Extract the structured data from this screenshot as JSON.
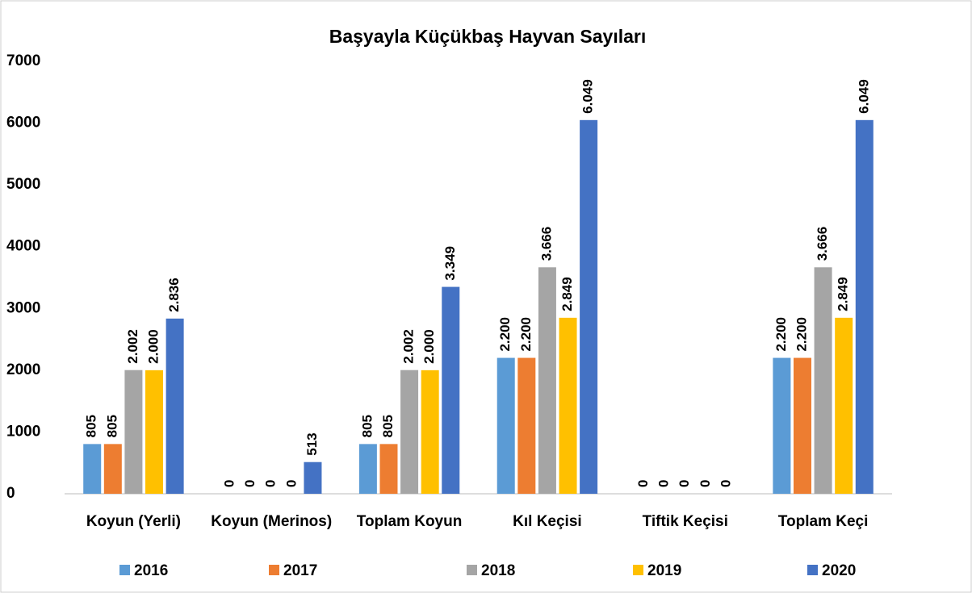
{
  "chart_data": {
    "type": "bar",
    "title": "Başyayla Küçükbaş  Hayvan Sayıları",
    "categories": [
      "Koyun (Yerli)",
      "Koyun (Merinos)",
      "Toplam Koyun",
      "Kıl Keçisi",
      "Tiftik Keçisi",
      "Toplam Keçi"
    ],
    "series": [
      {
        "name": "2016",
        "color": "#5b9bd5",
        "values": [
          805,
          0,
          805,
          2200,
          0,
          2200
        ],
        "value_labels": [
          "805",
          "0",
          "805",
          "2.200",
          "0",
          "2.200"
        ]
      },
      {
        "name": "2017",
        "color": "#ed7d31",
        "values": [
          805,
          0,
          805,
          2200,
          0,
          2200
        ],
        "value_labels": [
          "805",
          "0",
          "805",
          "2.200",
          "0",
          "2.200"
        ]
      },
      {
        "name": "2018",
        "color": "#a5a5a5",
        "values": [
          2002,
          0,
          2002,
          3666,
          0,
          3666
        ],
        "value_labels": [
          "2.002",
          "0",
          "2.002",
          "3.666",
          "0",
          "3.666"
        ]
      },
      {
        "name": "2019",
        "color": "#ffc000",
        "values": [
          2000,
          0,
          2000,
          2849,
          0,
          2849
        ],
        "value_labels": [
          "2.000",
          "0",
          "2.000",
          "2.849",
          "0",
          "2.849"
        ]
      },
      {
        "name": "2020",
        "color": "#4472c4",
        "values": [
          2836,
          513,
          3349,
          6049,
          0,
          6049
        ],
        "value_labels": [
          "2.836",
          "513",
          "3.349",
          "6.049",
          "0",
          "6.049"
        ]
      }
    ],
    "ylim": [
      0,
      7000
    ],
    "yticks": [
      0,
      1000,
      2000,
      3000,
      4000,
      5000,
      6000,
      7000
    ],
    "grid": false,
    "legend": "bottom"
  }
}
